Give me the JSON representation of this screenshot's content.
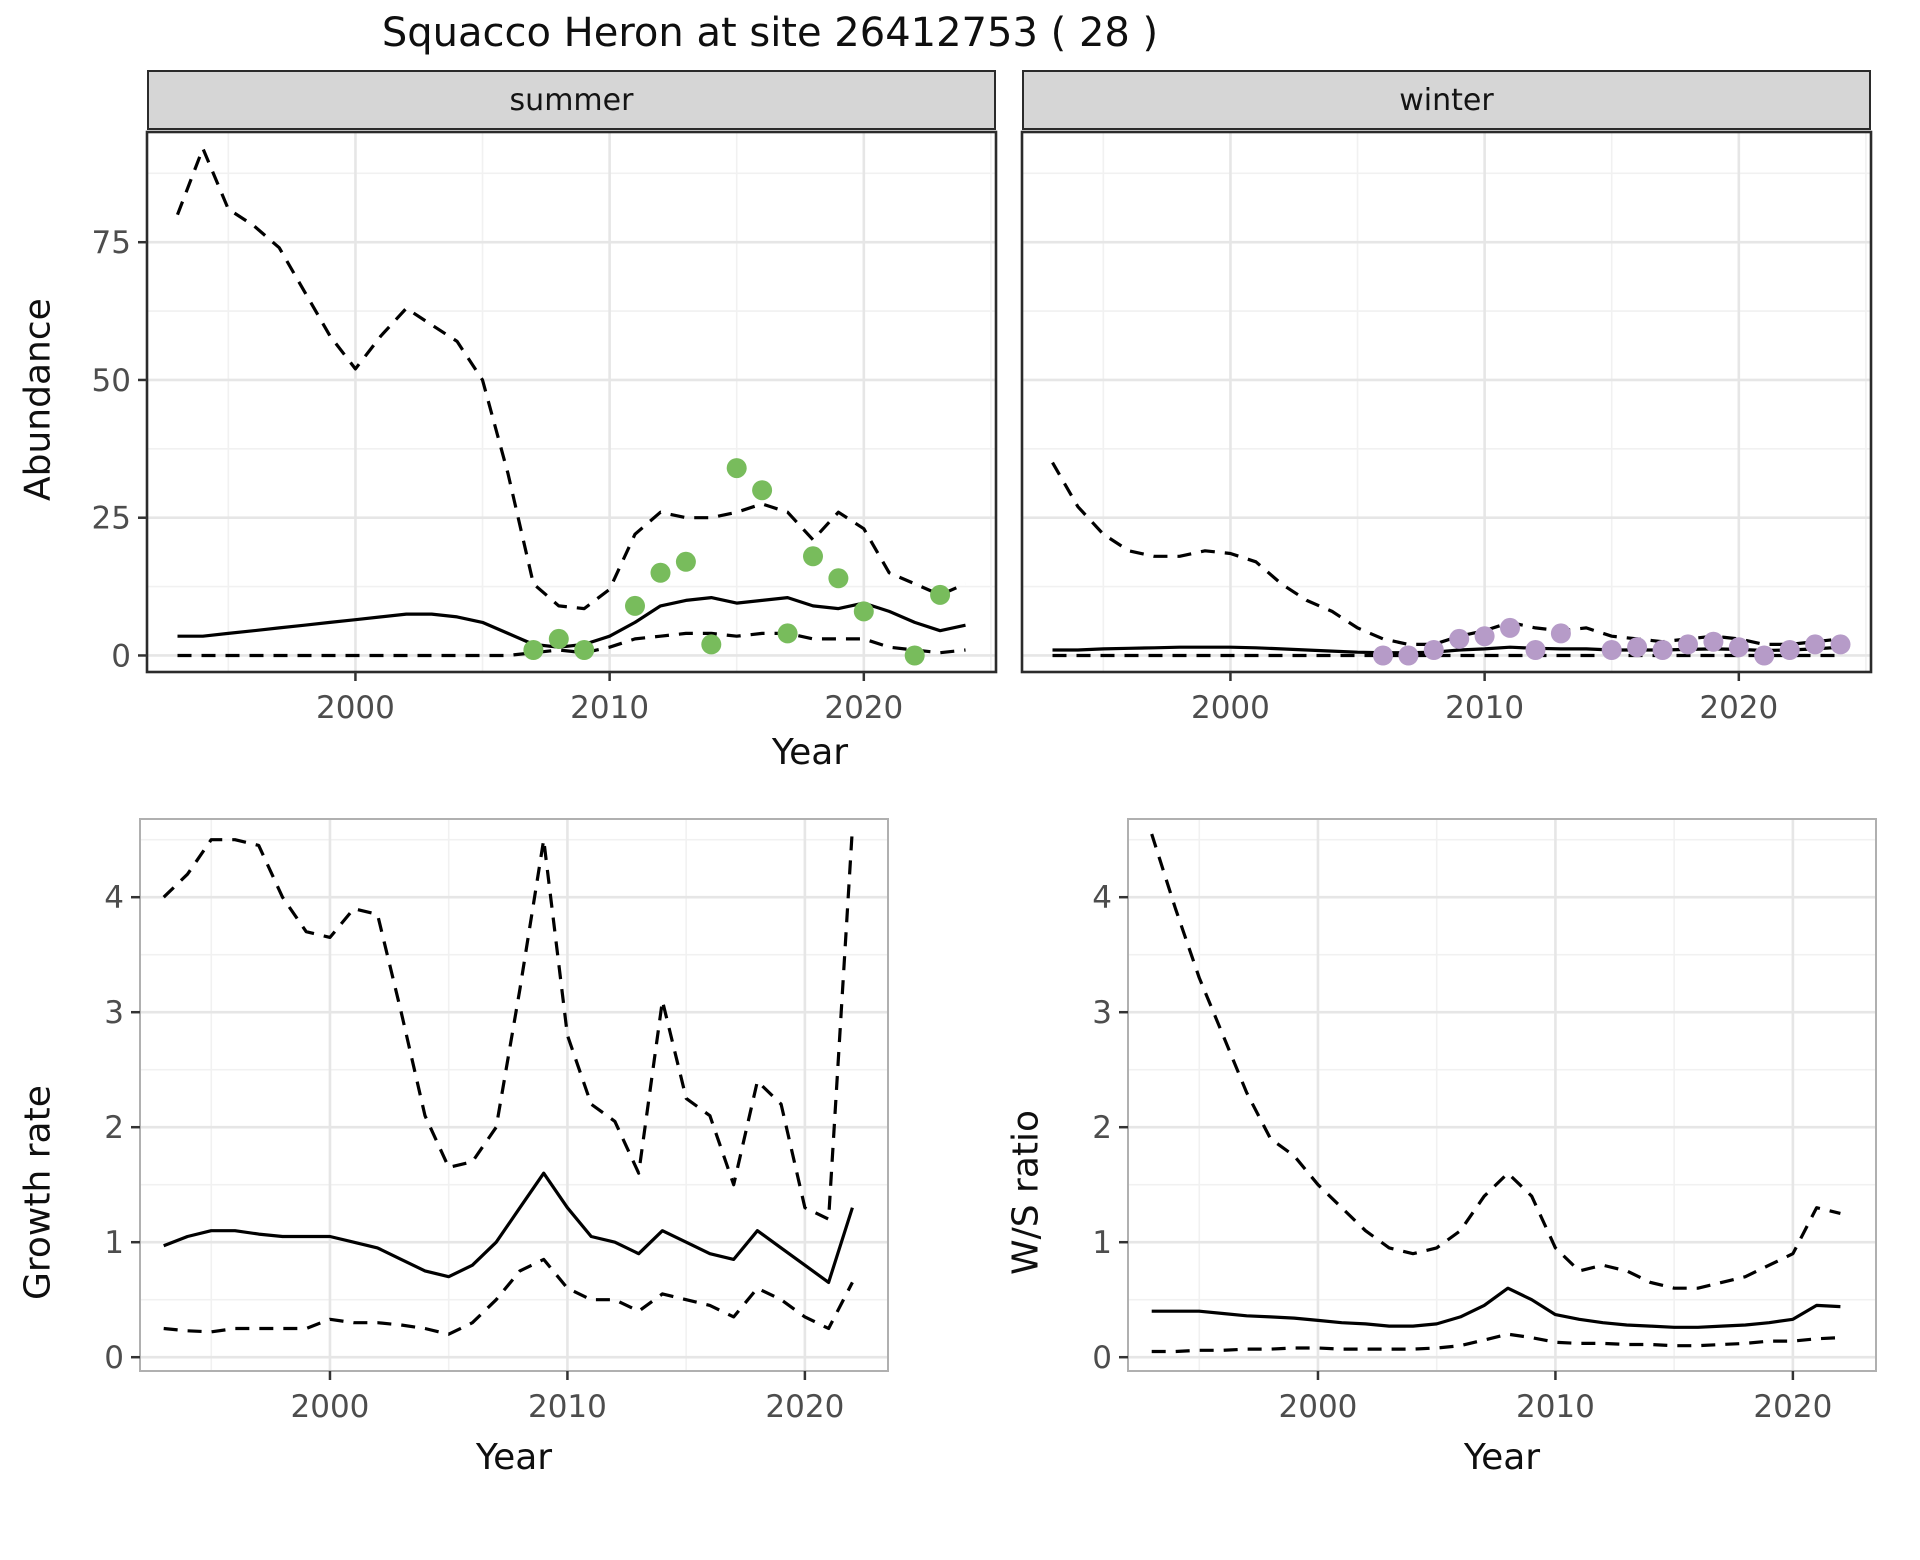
{
  "title": "Squacco Heron at site 26412753 ( 28 )",
  "colors": {
    "summer_points": "#78bc5c",
    "winter_points": "#b69bc8",
    "line": "#000000",
    "strip_background": "#d6d6d6",
    "grid_major": "#e6e6e6",
    "grid_minor": "#f1f1f1"
  },
  "chart_data": [
    {
      "id": "abundance-summer",
      "type": "line",
      "facet": "summer",
      "xlabel": "Year",
      "ylabel": "Abundance",
      "xlim": [
        1991.8,
        2025.2
      ],
      "ylim": [
        -3,
        95
      ],
      "xticks": [
        2000,
        2010,
        2020
      ],
      "yticks": [
        0,
        25,
        50,
        75
      ],
      "grid": true,
      "legend": false,
      "x": [
        1993,
        1994,
        1995,
        1996,
        1997,
        1998,
        1999,
        2000,
        2001,
        2002,
        2003,
        2004,
        2005,
        2006,
        2007,
        2008,
        2009,
        2010,
        2011,
        2012,
        2013,
        2014,
        2015,
        2016,
        2017,
        2018,
        2019,
        2020,
        2021,
        2022,
        2023,
        2024
      ],
      "series": [
        {
          "name": "estimate",
          "style": "solid",
          "values": [
            3.5,
            3.5,
            4,
            4.5,
            5,
            5.5,
            6,
            6.5,
            7,
            7.5,
            7.5,
            7,
            6,
            4,
            2,
            1.5,
            2,
            3.5,
            6,
            9,
            10,
            10.5,
            9.5,
            10,
            10.5,
            9,
            8.5,
            9.5,
            8,
            6,
            4.5,
            5.5
          ]
        },
        {
          "name": "upper-ci",
          "style": "dashed",
          "values": [
            80,
            92,
            81,
            78,
            74,
            66,
            58,
            52,
            58,
            63,
            60,
            57,
            50,
            33,
            13,
            9,
            8.5,
            12,
            22,
            26,
            25,
            25,
            26,
            27.5,
            26,
            21,
            26,
            23,
            15,
            13,
            11,
            13
          ]
        },
        {
          "name": "lower-ci",
          "style": "dashed",
          "values": [
            0,
            0,
            0,
            0,
            0,
            0,
            0,
            0,
            0,
            0,
            0,
            0,
            0,
            0,
            0.5,
            1,
            0.5,
            1.5,
            3,
            3.5,
            4,
            4,
            3.5,
            4,
            4,
            3,
            3,
            3,
            1.5,
            1,
            0.5,
            1
          ]
        }
      ],
      "points": {
        "name": "observed-counts-summer",
        "color": "#78bc5c",
        "x": [
          2007,
          2008,
          2009,
          2011,
          2012,
          2013,
          2014,
          2015,
          2016,
          2017,
          2018,
          2019,
          2020,
          2022,
          2023
        ],
        "y": [
          1,
          3,
          1,
          9,
          15,
          17,
          2,
          34,
          30,
          4,
          18,
          14,
          8,
          0,
          11
        ]
      }
    },
    {
      "id": "abundance-winter",
      "type": "line",
      "facet": "winter",
      "xlabel": "Year",
      "ylabel": "Abundance",
      "xlim": [
        1991.8,
        2025.2
      ],
      "ylim": [
        -3,
        95
      ],
      "xticks": [
        2000,
        2010,
        2020
      ],
      "yticks": [
        0,
        25,
        50,
        75
      ],
      "grid": true,
      "legend": false,
      "x": [
        1993,
        1994,
        1995,
        1996,
        1997,
        1998,
        1999,
        2000,
        2001,
        2002,
        2003,
        2004,
        2005,
        2006,
        2007,
        2008,
        2009,
        2010,
        2011,
        2012,
        2013,
        2014,
        2015,
        2016,
        2017,
        2018,
        2019,
        2020,
        2021,
        2022,
        2023,
        2024
      ],
      "series": [
        {
          "name": "estimate",
          "style": "solid",
          "values": [
            1,
            1,
            1.2,
            1.3,
            1.4,
            1.5,
            1.5,
            1.5,
            1.4,
            1.2,
            1,
            0.8,
            0.6,
            0.5,
            0.5,
            0.6,
            1,
            1.2,
            1.5,
            1.3,
            1.2,
            1.2,
            1,
            1,
            1,
            1.1,
            1.2,
            1.1,
            0.9,
            1,
            1.2,
            1.5
          ]
        },
        {
          "name": "upper-ci",
          "style": "dashed",
          "values": [
            35,
            27,
            22,
            19,
            18,
            18,
            19,
            18.5,
            17,
            13,
            10,
            8,
            5,
            3,
            2,
            2,
            3.5,
            4.5,
            6,
            5,
            4.5,
            5,
            3.5,
            3,
            2.5,
            3,
            3.5,
            3,
            2,
            2,
            2.5,
            3
          ]
        },
        {
          "name": "lower-ci",
          "style": "dashed",
          "values": [
            0,
            0,
            0,
            0,
            0,
            0,
            0,
            0,
            0,
            0,
            0,
            0,
            0,
            0,
            0,
            0,
            0,
            0,
            0,
            0,
            0,
            0,
            0,
            0,
            0,
            0,
            0,
            0,
            0,
            0,
            0,
            0
          ]
        }
      ],
      "points": {
        "name": "observed-counts-winter",
        "color": "#b69bc8",
        "x": [
          2006,
          2007,
          2008,
          2009,
          2010,
          2011,
          2012,
          2013,
          2015,
          2016,
          2017,
          2018,
          2019,
          2020,
          2021,
          2022,
          2023,
          2024
        ],
        "y": [
          0,
          0,
          1,
          3,
          3.5,
          5,
          1,
          4,
          1,
          1.5,
          1,
          2,
          2.5,
          1.5,
          0,
          1,
          2,
          2
        ]
      }
    },
    {
      "id": "growth-rate",
      "type": "line",
      "facet": "",
      "xlabel": "Year",
      "ylabel": "Growth rate",
      "xlim": [
        1992,
        2023.5
      ],
      "ylim": [
        -0.12,
        4.68
      ],
      "xticks": [
        2000,
        2010,
        2020
      ],
      "yticks": [
        0,
        1,
        2,
        3,
        4
      ],
      "grid": true,
      "legend": false,
      "x": [
        1993,
        1994,
        1995,
        1996,
        1997,
        1998,
        1999,
        2000,
        2001,
        2002,
        2003,
        2004,
        2005,
        2006,
        2007,
        2008,
        2009,
        2010,
        2011,
        2012,
        2013,
        2014,
        2015,
        2016,
        2017,
        2018,
        2019,
        2020,
        2021,
        2022
      ],
      "series": [
        {
          "name": "estimate",
          "style": "solid",
          "values": [
            0.97,
            1.05,
            1.1,
            1.1,
            1.07,
            1.05,
            1.05,
            1.05,
            1,
            0.95,
            0.85,
            0.75,
            0.7,
            0.8,
            1,
            1.3,
            1.6,
            1.3,
            1.05,
            1,
            0.9,
            1.1,
            1,
            0.9,
            0.85,
            1.1,
            0.95,
            0.8,
            0.65,
            1.3
          ]
        },
        {
          "name": "upper-ci",
          "style": "dashed",
          "values": [
            4,
            4.2,
            4.5,
            4.5,
            4.45,
            4,
            3.7,
            3.65,
            3.9,
            3.85,
            3,
            2.1,
            1.65,
            1.7,
            2,
            3.2,
            4.5,
            2.8,
            2.2,
            2.05,
            1.6,
            3.1,
            2.25,
            2.1,
            1.5,
            2.4,
            2.2,
            1.3,
            1.2,
            4.6
          ]
        },
        {
          "name": "lower-ci",
          "style": "dashed",
          "values": [
            0.25,
            0.23,
            0.22,
            0.25,
            0.25,
            0.25,
            0.25,
            0.33,
            0.3,
            0.3,
            0.28,
            0.25,
            0.2,
            0.3,
            0.5,
            0.75,
            0.85,
            0.6,
            0.5,
            0.5,
            0.4,
            0.55,
            0.5,
            0.45,
            0.35,
            0.6,
            0.5,
            0.35,
            0.25,
            0.65
          ]
        }
      ]
    },
    {
      "id": "ws-ratio",
      "type": "line",
      "facet": "",
      "xlabel": "Year",
      "ylabel": "W/S ratio",
      "xlim": [
        1992,
        2023.5
      ],
      "ylim": [
        -0.12,
        4.68
      ],
      "xticks": [
        2000,
        2010,
        2020
      ],
      "yticks": [
        0,
        1,
        2,
        3,
        4
      ],
      "grid": true,
      "legend": false,
      "x": [
        1993,
        1994,
        1995,
        1996,
        1997,
        1998,
        1999,
        2000,
        2001,
        2002,
        2003,
        2004,
        2005,
        2006,
        2007,
        2008,
        2009,
        2010,
        2011,
        2012,
        2013,
        2014,
        2015,
        2016,
        2017,
        2018,
        2019,
        2020,
        2021,
        2022
      ],
      "series": [
        {
          "name": "estimate",
          "style": "solid",
          "values": [
            0.4,
            0.4,
            0.4,
            0.38,
            0.36,
            0.35,
            0.34,
            0.32,
            0.3,
            0.29,
            0.27,
            0.27,
            0.29,
            0.35,
            0.45,
            0.6,
            0.5,
            0.37,
            0.33,
            0.3,
            0.28,
            0.27,
            0.26,
            0.26,
            0.27,
            0.28,
            0.3,
            0.33,
            0.45,
            0.44
          ]
        },
        {
          "name": "upper-ci",
          "style": "dashed",
          "values": [
            4.55,
            3.9,
            3.3,
            2.8,
            2.3,
            1.9,
            1.75,
            1.5,
            1.3,
            1.1,
            0.95,
            0.9,
            0.95,
            1.1,
            1.4,
            1.6,
            1.4,
            0.95,
            0.75,
            0.8,
            0.75,
            0.65,
            0.6,
            0.6,
            0.65,
            0.7,
            0.8,
            0.9,
            1.3,
            1.25
          ]
        },
        {
          "name": "lower-ci",
          "style": "dashed",
          "values": [
            0.05,
            0.05,
            0.06,
            0.06,
            0.07,
            0.07,
            0.08,
            0.08,
            0.07,
            0.07,
            0.07,
            0.07,
            0.08,
            0.1,
            0.15,
            0.2,
            0.17,
            0.13,
            0.12,
            0.12,
            0.11,
            0.11,
            0.1,
            0.1,
            0.11,
            0.12,
            0.14,
            0.14,
            0.16,
            0.17
          ]
        }
      ]
    }
  ]
}
